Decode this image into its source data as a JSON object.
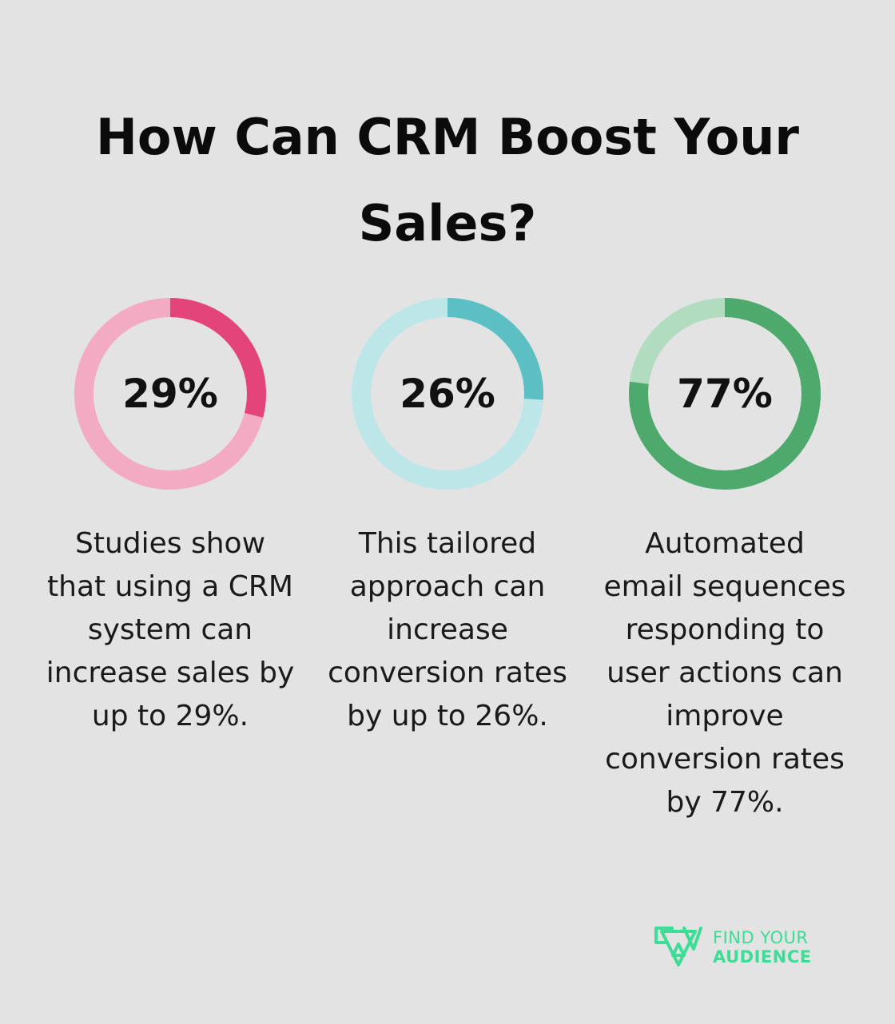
{
  "title": "How Can CRM Boost Your Sales?",
  "chart_data": {
    "type": "pie",
    "title": "How Can CRM Boost Your Sales?",
    "charts": [
      {
        "value": 29,
        "label": "29%",
        "description": "Studies show\nthat using a CRM\nsystem can\nincrease sales by\nup to 29%.",
        "colors": {
          "fill": "#e3457a",
          "track": "#f3aac3"
        }
      },
      {
        "value": 26,
        "label": "26%",
        "description": "This tailored\napproach can\nincrease\nconversion rates\nby up to 26%.",
        "colors": {
          "fill": "#5bbfc4",
          "track": "#bde6e8"
        }
      },
      {
        "value": 77,
        "label": "77%",
        "description": "Automated\nemail sequences\nresponding to\nuser actions can\nimprove\nconversion rates\nby 77%.",
        "colors": {
          "fill": "#4ea96d",
          "track": "#b2dcc0"
        }
      }
    ]
  },
  "brand": {
    "line1": "FIND YOUR",
    "line2": "AUDIENCE",
    "color": "#3ddc97"
  }
}
